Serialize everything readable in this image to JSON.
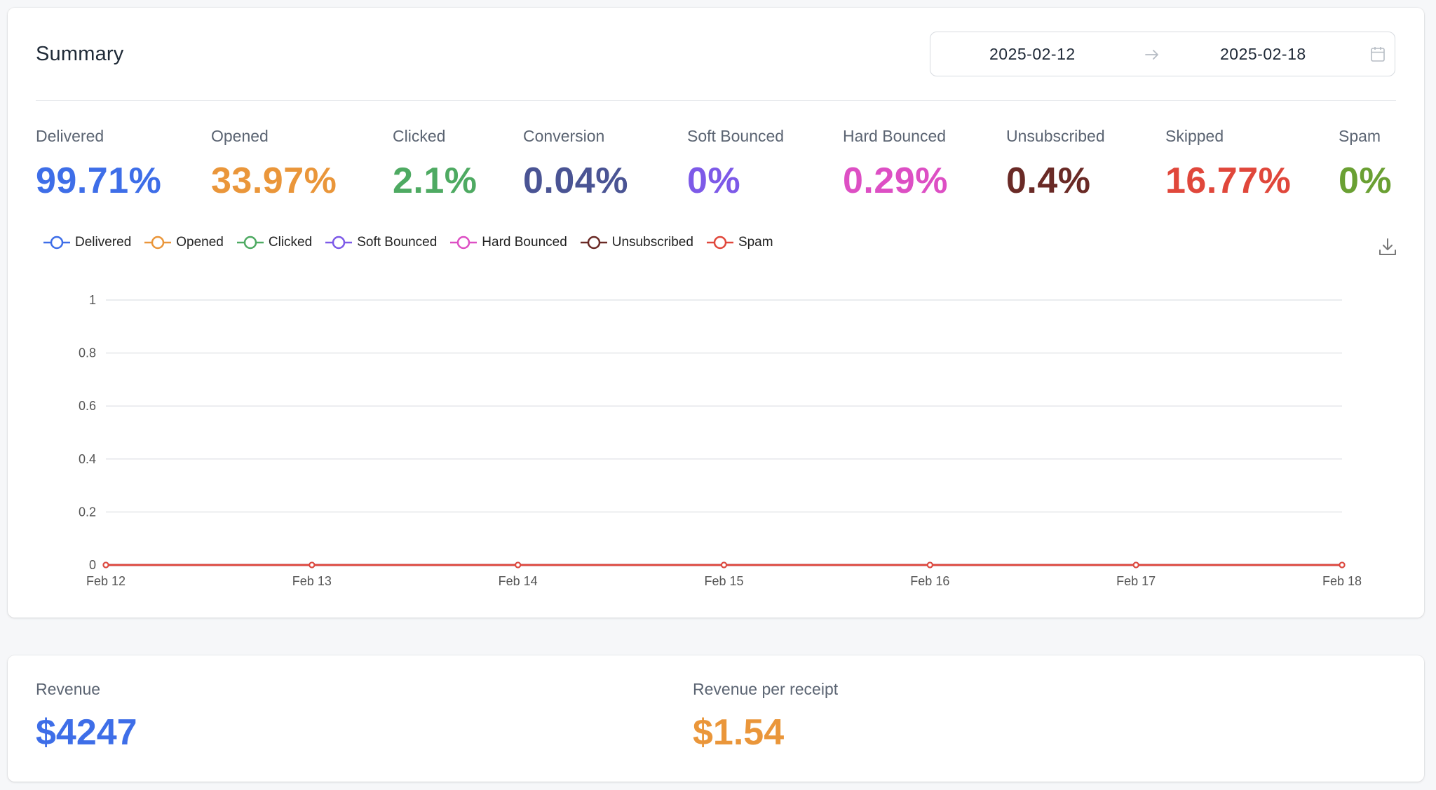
{
  "summary": {
    "title": "Summary",
    "date_start": "2025-02-12",
    "date_end": "2025-02-18"
  },
  "stats": [
    {
      "label": "Delivered",
      "value": "99.71%",
      "color": "#3e6ee8"
    },
    {
      "label": "Opened",
      "value": "33.97%",
      "color": "#ea963a"
    },
    {
      "label": "Clicked",
      "value": "2.1%",
      "color": "#4eaa62"
    },
    {
      "label": "Conversion",
      "value": "0.04%",
      "color": "#4a5494"
    },
    {
      "label": "Soft Bounced",
      "value": "0%",
      "color": "#7d5ae8"
    },
    {
      "label": "Hard Bounced",
      "value": "0.29%",
      "color": "#dd4fc4"
    },
    {
      "label": "Unsubscribed",
      "value": "0.4%",
      "color": "#6a2a26"
    },
    {
      "label": "Skipped",
      "value": "16.77%",
      "color": "#e0473b"
    },
    {
      "label": "Spam",
      "value": "0%",
      "color": "#6aa033"
    }
  ],
  "chart_data": {
    "type": "line",
    "x": [
      "Feb 12",
      "Feb 13",
      "Feb 14",
      "Feb 15",
      "Feb 16",
      "Feb 17",
      "Feb 18"
    ],
    "ylim": [
      0,
      1
    ],
    "yticks": [
      "0",
      "0.2",
      "0.4",
      "0.6",
      "0.8",
      "1"
    ],
    "grid": true,
    "legend_position": "top-left",
    "series": [
      {
        "name": "Delivered",
        "color": "#3e6ee8",
        "values": [
          0,
          0,
          0,
          0,
          0,
          0,
          0
        ]
      },
      {
        "name": "Opened",
        "color": "#ea963a",
        "values": [
          0,
          0,
          0,
          0,
          0,
          0,
          0
        ]
      },
      {
        "name": "Clicked",
        "color": "#4eaa62",
        "values": [
          0,
          0,
          0,
          0,
          0,
          0,
          0
        ]
      },
      {
        "name": "Soft Bounced",
        "color": "#7d5ae8",
        "values": [
          0,
          0,
          0,
          0,
          0,
          0,
          0
        ]
      },
      {
        "name": "Hard Bounced",
        "color": "#dd4fc4",
        "values": [
          0,
          0,
          0,
          0,
          0,
          0,
          0
        ]
      },
      {
        "name": "Unsubscribed",
        "color": "#6a2a26",
        "values": [
          0,
          0,
          0,
          0,
          0,
          0,
          0
        ]
      },
      {
        "name": "Spam",
        "color": "#e0473b",
        "values": [
          0,
          0,
          0,
          0,
          0,
          0,
          0
        ]
      }
    ]
  },
  "revenue": {
    "label": "Revenue",
    "value": "$4247",
    "color": "#3e6ee8",
    "per_receipt_label": "Revenue per receipt",
    "per_receipt_value": "$1.54",
    "per_receipt_color": "#ea963a"
  },
  "icons": {
    "date_arrow": "arrow-right-icon",
    "calendar": "calendar-icon",
    "download": "download-icon"
  }
}
